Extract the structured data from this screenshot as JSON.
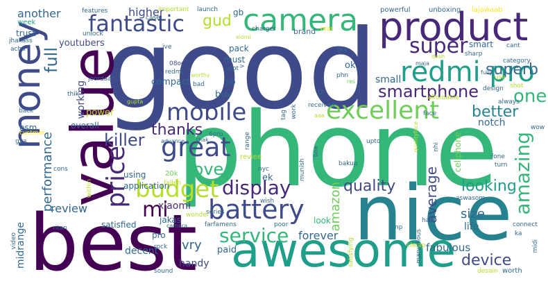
{
  "words": {
    "good": "good",
    "phone": "phone",
    "nice": "nice",
    "best": "best",
    "awesome": "awesome",
    "value": "value",
    "money": "money",
    "product": "product",
    "camera": "camera",
    "fantastic": "fantastic",
    "redmi_pro": "redmi pro",
    "mobile": "mobile",
    "excellent": "excellent",
    "great": "great",
    "battery": "battery",
    "price": "price",
    "budget": "budget",
    "display": "display",
    "quality": "quality",
    "amazing": "amazing",
    "super": "super",
    "superb": "superb",
    "smartphone": "smartphone",
    "one": "one",
    "service": "service",
    "love": "love",
    "mi": "mi",
    "thanks": "thanks",
    "killer": "killer",
    "better": "better",
    "looking": "looking",
    "device": "device",
    "full": "full",
    "another": "another",
    "higher": "higher",
    "gud": "gud",
    "performance": "performance",
    "review": "review",
    "xiaomi": "xiaomi",
    "amazon": "amazon",
    "average": "average",
    "size": "size",
    "life": "life",
    "forever": "forever",
    "fabulous": "fabulous",
    "vry": "vry",
    "paid": "paid",
    "handy": "handy",
    "decent": "decent",
    "midrange": "midrange",
    "satisfied": "satisfied",
    "jakas": "jakas",
    "trust": "trust",
    "youtubers": "youtubers",
    "working": "working",
    "compact": "compact",
    "power": "power",
    "overall": "overall",
    "osm": "osm",
    "application": "application",
    "using": "using",
    "buy": "buy",
    "must": "must",
    "ok": "ok",
    "small": "small",
    "notch": "notch",
    "ek": "ek",
    "look": "look",
    "pro": "pro",
    "pack": "pack",
    "smart": "smart",
    "brand": "brand",
    "gb": "gb",
    "launch": "launch",
    "important": "important",
    "powerful": "powerful",
    "unboxing": "unboxing",
    "lajawaab": "lajawaab",
    "features": "features",
    "week": "week",
    "unlock": "unlock",
    "charger": "charger",
    "rear": "rear",
    "ive": "ive",
    "xiomi": "xiomi",
    "cant": "cant",
    "gty": "gty",
    "maja": "maja",
    "desh": "desh",
    "category": "category",
    "sharp": "sharp",
    "fully": "fully",
    "jhakass": "jhakass",
    "acha": "acha",
    "08oct": "08oct",
    "redmi": "redmi",
    "worthy": "worthy",
    "alot": "alot",
    "phn": "phn",
    "res": "res",
    "joordaar": "joordaar",
    "bad": "bad",
    "job": "job",
    "u": "u",
    "thik": "thik",
    "gupta": "gupta",
    "received": "received",
    "affordable": "affordable",
    "always": "always",
    "shot": "shot",
    "use": "use",
    "back": "back",
    "tag": "tag",
    "work": "work",
    "face": "face",
    "custmer": "custmer",
    "6pro": "6pro",
    "advance": "advance",
    "thak": "thak",
    "aaa": "aaa",
    "wow": "wow",
    "gya": "gya",
    "reviee": "reviee",
    "range": "range",
    "upto": "upto",
    "qualityface": "qualityface",
    "nhi": "nhi",
    "cellphone": "cellphone",
    "fone": "fone",
    "turn": "turn",
    "bakup": "bakup",
    "20k": "20k",
    "fallen": "fallen",
    "wish": "wish",
    "munish": "munish",
    "nyc": "nyc",
    "cons": "cons",
    "within": "within",
    "series": "series",
    "wonder": "wonder",
    "aswasom": "aswasom",
    "hai": "hai",
    "np": "np",
    "connect": "connect",
    "ka": "ka",
    "ritan": "ritan",
    "camera_small": "camera",
    "farfamens": "farfamens",
    "poor": "poor",
    "marvellous": "marvellous",
    "video": "video",
    "rock": "rock",
    "satisfying": "satisfying",
    "cheap": "cheap",
    "midi": "midi",
    "sound": "sound",
    "desain": "desain",
    "worth": "worth",
    "case": "case",
    "design": "design",
    "box": "box",
    ">": ">"
  }
}
